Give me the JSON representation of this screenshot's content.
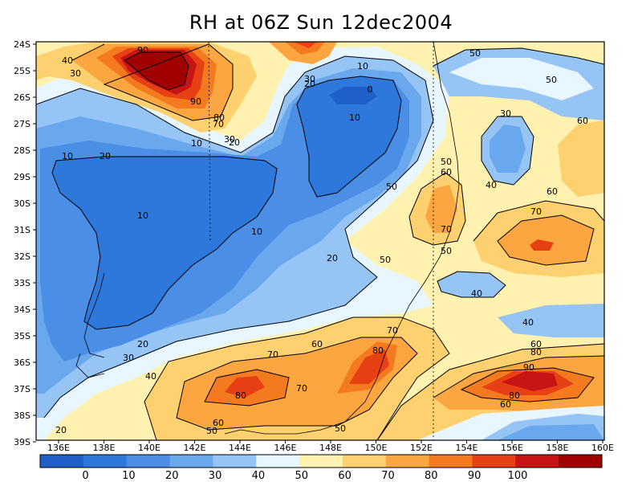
{
  "title": "RH at 06Z Sun 12dec2004",
  "y_axis_labels": [
    "24S",
    "25S",
    "26S",
    "27S",
    "28S",
    "29S",
    "30S",
    "31S",
    "32S",
    "33S",
    "34S",
    "35S",
    "36S",
    "37S",
    "38S",
    "39S"
  ],
  "x_axis_labels": [
    "136E",
    "138E",
    "140E",
    "142E",
    "144E",
    "146E",
    "148E",
    "150E",
    "152E",
    "154E",
    "156E",
    "158E",
    "160E"
  ],
  "colorbar": {
    "tick_labels": [
      "0",
      "10",
      "20",
      "30",
      "40",
      "50",
      "60",
      "70",
      "80",
      "90",
      "100"
    ],
    "colors": [
      "#1f5fc8",
      "#2e78dc",
      "#4a8ee6",
      "#6aa8ee",
      "#96c4f4",
      "#e8f6ff",
      "#fff2b0",
      "#fdd070",
      "#fba640",
      "#f47a20",
      "#e84015",
      "#c81414",
      "#a00000"
    ]
  },
  "contour_labels": [
    "90",
    "40",
    "30",
    "10",
    "30",
    "20",
    "0",
    "50",
    "90",
    "80",
    "70",
    "10",
    "30",
    "60",
    "10",
    "20",
    "50",
    "60",
    "20",
    "10",
    "40",
    "30",
    "60",
    "50",
    "70",
    "10",
    "50",
    "20",
    "70",
    "50",
    "40",
    "10",
    "40",
    "50",
    "70",
    "60",
    "70",
    "80",
    "20",
    "60",
    "30",
    "80",
    "70",
    "80",
    "90",
    "40",
    "80",
    "60",
    "50",
    "20",
    "60",
    "50"
  ]
}
